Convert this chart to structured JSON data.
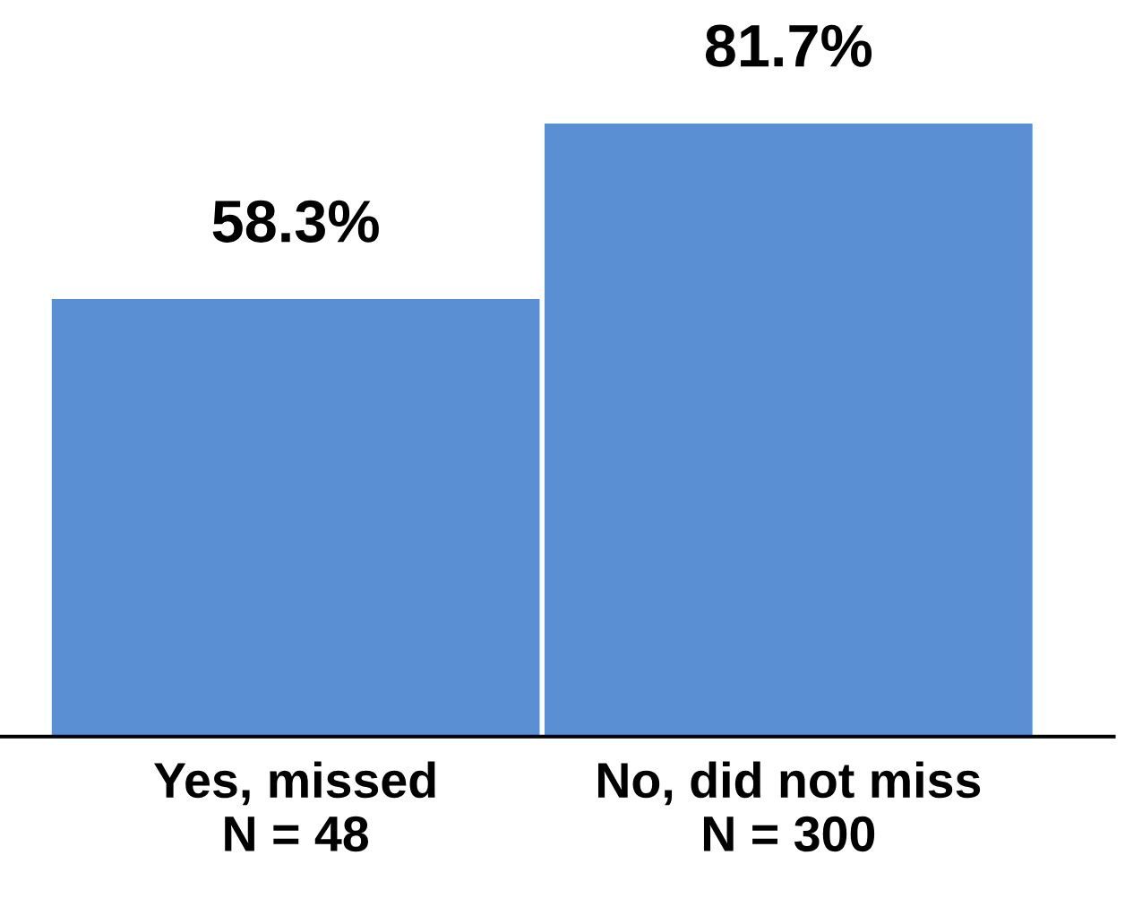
{
  "chart_data": {
    "type": "bar",
    "categories": [
      "Yes, missed\nN = 48",
      "No, did not miss\nN = 300"
    ],
    "values": [
      58.3,
      81.7
    ],
    "value_labels": [
      "58.3%",
      "81.7%"
    ],
    "colors": [
      "#5b8fd4",
      "#5b8fd4"
    ],
    "grid": false
  }
}
